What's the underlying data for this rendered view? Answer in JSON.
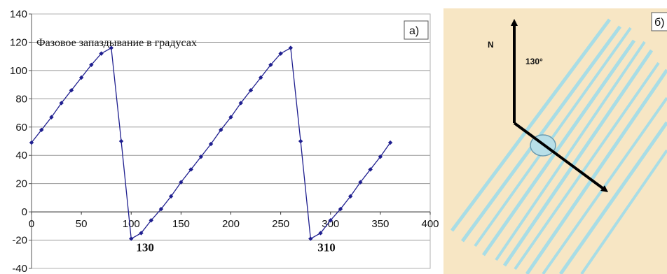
{
  "chart_data": {
    "type": "line",
    "title": "Фазовое запаздывание в градусах",
    "panel_label": "а)",
    "xlim": [
      0,
      400
    ],
    "ylim": [
      -40,
      140
    ],
    "x_ticks": [
      0,
      50,
      100,
      150,
      200,
      250,
      300,
      350,
      400
    ],
    "y_ticks": [
      -40,
      -20,
      0,
      20,
      40,
      60,
      80,
      100,
      120,
      140
    ],
    "grid": "horizontal",
    "legend": "none",
    "series": [
      {
        "color": "#1f1f8f",
        "x": [
          0,
          10,
          20,
          30,
          40,
          50,
          60,
          70,
          80,
          90,
          100,
          110,
          120,
          130,
          140,
          150,
          160,
          170,
          180,
          190,
          200,
          210,
          220,
          230,
          240,
          250,
          260,
          270,
          280,
          290,
          300,
          310,
          320,
          330,
          340,
          350,
          360
        ],
        "y": [
          49,
          58,
          67,
          77,
          86,
          95,
          104,
          112,
          116,
          50,
          -19,
          -15,
          -6,
          2,
          11,
          21,
          30,
          39,
          48,
          58,
          67,
          77,
          86,
          95,
          104,
          112,
          116,
          50,
          -19,
          -15,
          -6,
          2,
          11,
          21,
          30,
          39,
          49
        ]
      }
    ],
    "annotations": [
      {
        "text": "130",
        "x": 105,
        "y": -25
      },
      {
        "text": "310",
        "x": 287,
        "y": -25
      }
    ]
  },
  "panel_b": {
    "label": "б)",
    "north_label": "N",
    "angle_label": "130°",
    "background": "#f7e6c4",
    "line_color": "#a8dde6"
  }
}
